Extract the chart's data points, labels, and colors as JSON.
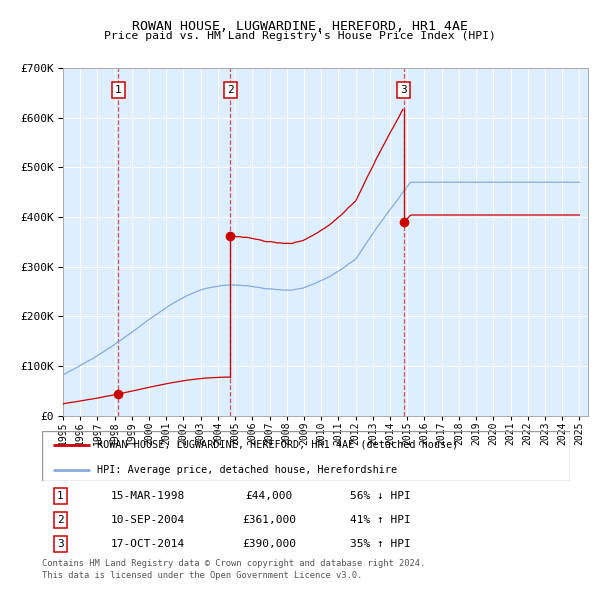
{
  "title": "ROWAN HOUSE, LUGWARDINE, HEREFORD, HR1 4AE",
  "subtitle": "Price paid vs. HM Land Registry's House Price Index (HPI)",
  "sale_date_floats": [
    1998.208,
    2004.708,
    2014.792
  ],
  "sale_prices": [
    44000,
    361000,
    390000
  ],
  "sale_labels": [
    "1",
    "2",
    "3"
  ],
  "sale_table": [
    [
      "1",
      "15-MAR-1998",
      "£44,000",
      "56% ↓ HPI"
    ],
    [
      "2",
      "10-SEP-2004",
      "£361,000",
      "41% ↑ HPI"
    ],
    [
      "3",
      "17-OCT-2014",
      "£390,000",
      "35% ↑ HPI"
    ]
  ],
  "legend_red": "ROWAN HOUSE, LUGWARDINE, HEREFORD, HR1 4AE (detached house)",
  "legend_blue": "HPI: Average price, detached house, Herefordshire",
  "footnote1": "Contains HM Land Registry data © Crown copyright and database right 2024.",
  "footnote2": "This data is licensed under the Open Government Licence v3.0.",
  "red_color": "#cc0000",
  "blue_color": "#88aadd",
  "plot_bg": "#ddeeff",
  "grid_color": "#ffffff",
  "ylim_max": 700000,
  "xmin": 1995.0,
  "xmax": 2025.5
}
